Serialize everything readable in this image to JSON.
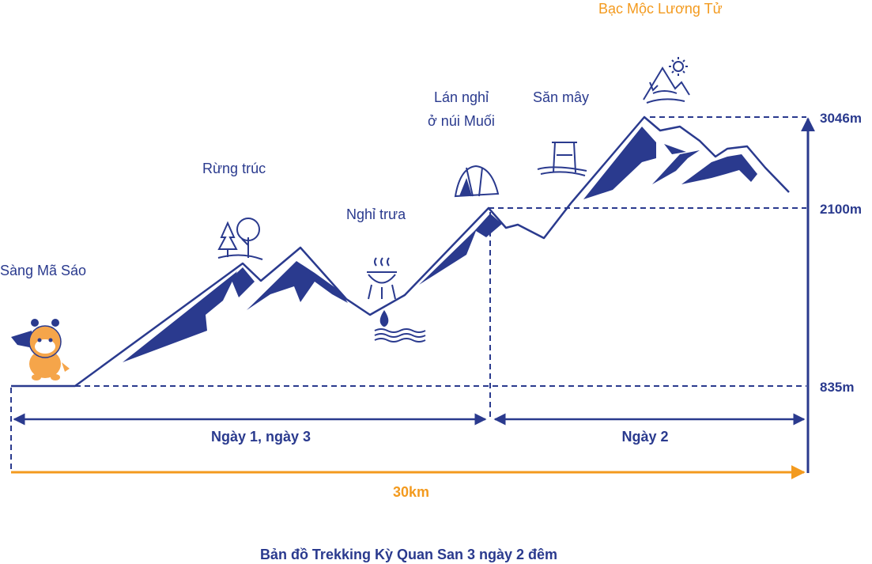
{
  "colors": {
    "navy": "#2a3a8e",
    "orange": "#f39a1e",
    "mascot": "#f5a54a"
  },
  "labels": {
    "start": "Sàng Mã Sáo",
    "bamboo": "Rừng trúc",
    "lunch": "Nghỉ trưa",
    "hut_line1": "Lán nghỉ",
    "hut_line2": "ở núi Muối",
    "clouds": "Săn mây",
    "summit": "Bạc Mộc Lương Tử"
  },
  "elevations": {
    "high": "3046m",
    "mid": "2100m",
    "low": "835m"
  },
  "days": {
    "day1": "Ngày 1, ngày 3",
    "day2": "Ngày 2"
  },
  "distance": "30km",
  "title": "Bản đồ Trekking Kỳ Quan San 3 ngày 2 đêm",
  "icons": [
    "mascot-icon",
    "forest-icon",
    "grill-icon",
    "water-icon",
    "tent-icon",
    "swing-icon",
    "summit-sun-icon"
  ]
}
